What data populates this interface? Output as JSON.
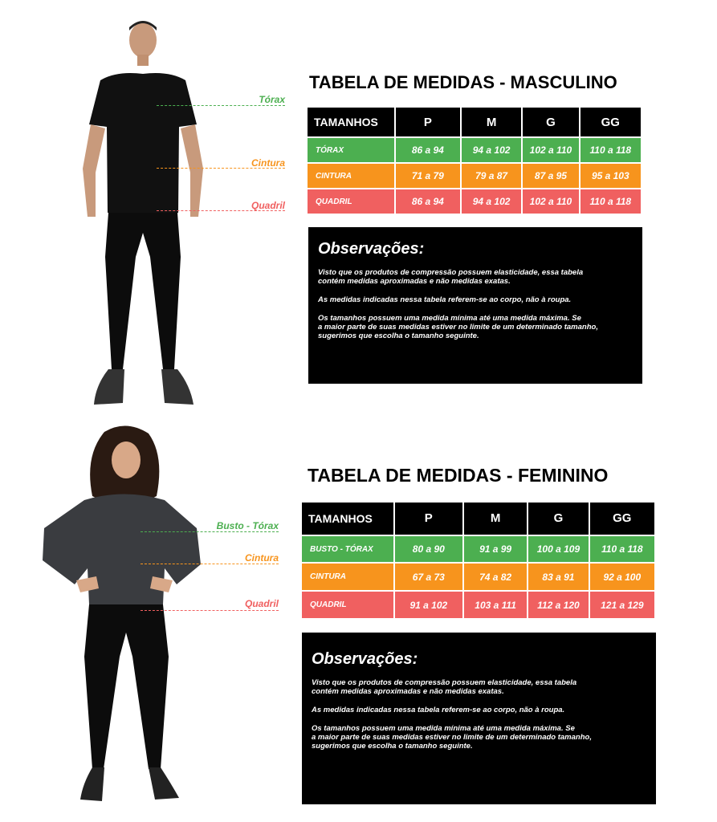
{
  "colors": {
    "green": "#4caf50",
    "orange": "#f7941d",
    "red": "#f06060",
    "header": "#000000"
  },
  "male": {
    "title": "TABELA DE MEDIDAS - MASCULINO",
    "labels": {
      "torax": "Tórax",
      "cintura": "Cintura",
      "quadril": "Quadril"
    },
    "table": {
      "header": [
        "TAMANHOS",
        "P",
        "M",
        "G",
        "GG"
      ],
      "rows": [
        [
          "TÓRAX",
          "86 a 94",
          "94 a 102",
          "102 a 110",
          "110 a 118"
        ],
        [
          "CINTURA",
          "71 a 79",
          "79 a 87",
          "87 a 95",
          "95 a 103"
        ],
        [
          "QUADRIL",
          "86 a 94",
          "94 a 102",
          "102 a 110",
          "110 a 118"
        ]
      ]
    },
    "obs": {
      "title": "Observações:",
      "p1": "Visto que os produtos de compressão possuem elasticidade, essa tabela\ncontém medidas aproximadas e não medidas exatas.",
      "p2": "As medidas indicadas nessa tabela referem-se ao corpo, não à roupa.",
      "p3": "Os tamanhos possuem uma medida mínima até uma medida máxima. Se\na maior parte de suas medidas estiver no limite de um determinado tamanho,\nsugerimos que escolha o tamanho seguinte."
    }
  },
  "female": {
    "title": "TABELA DE MEDIDAS - FEMININO",
    "labels": {
      "torax": "Busto - Tórax",
      "cintura": "Cintura",
      "quadril": "Quadril"
    },
    "table": {
      "header": [
        "TAMANHOS",
        "P",
        "M",
        "G",
        "GG"
      ],
      "rows": [
        [
          "BUSTO - TÓRAX",
          "80 a 90",
          "91 a 99",
          "100 a 109",
          "110 a 118"
        ],
        [
          "CINTURA",
          "67 a 73",
          "74 a 82",
          "83 a 91",
          "92 a 100"
        ],
        [
          "QUADRIL",
          "91 a 102",
          "103 a 111",
          "112 a 120",
          "121 a 129"
        ]
      ]
    },
    "obs": {
      "title": "Observações:",
      "p1": "Visto que os produtos de compressão possuem elasticidade, essa tabela\ncontém medidas aproximadas e não medidas exatas.",
      "p2": "As medidas indicadas nessa tabela referem-se ao corpo, não à roupa.",
      "p3": "Os tamanhos possuem uma medida mínima até uma medida máxima. Se\na maior parte de suas medidas estiver no limite de um determinado tamanho,\nsugerimos que escolha o tamanho seguinte."
    }
  }
}
